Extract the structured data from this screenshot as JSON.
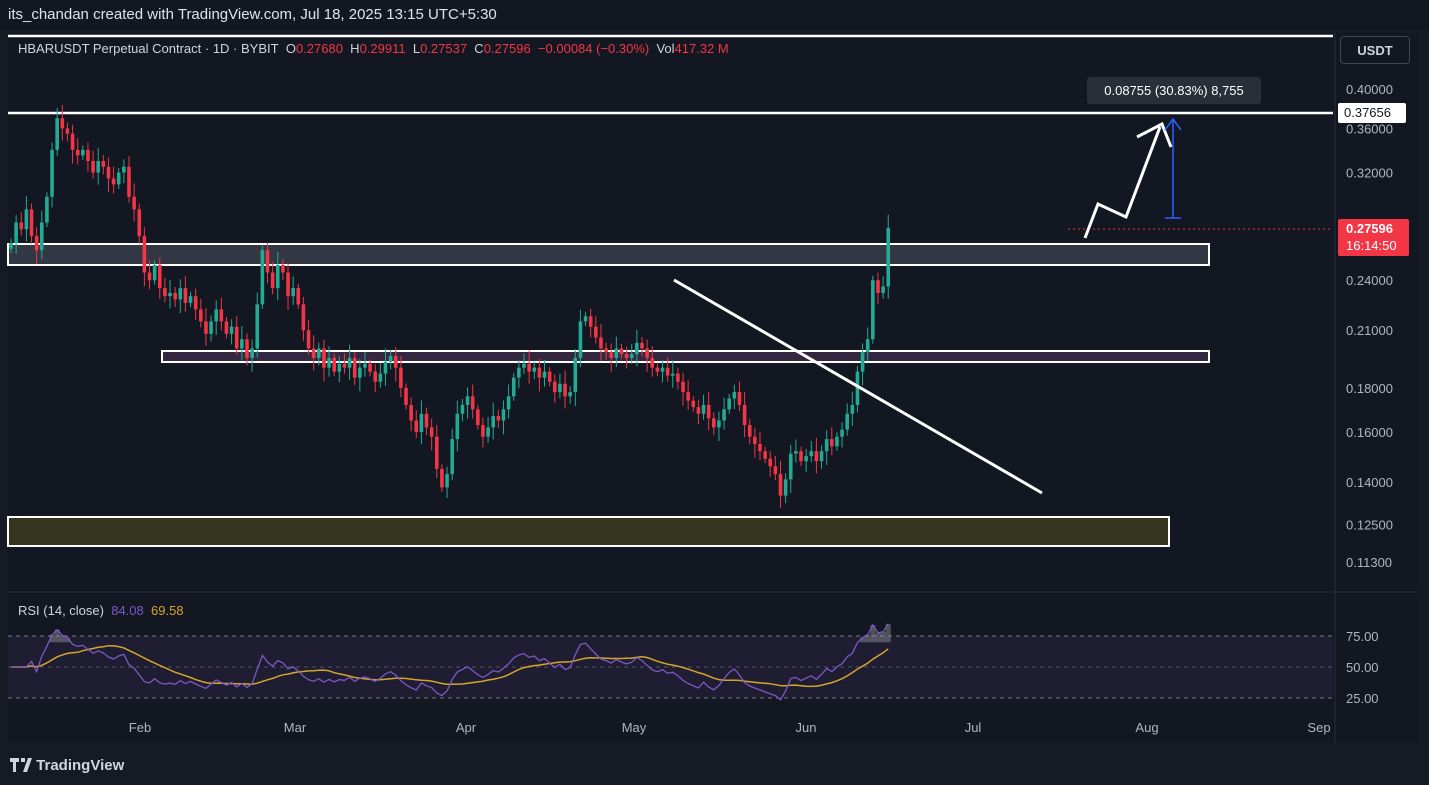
{
  "header": {
    "caption": "its_chandan created with TradingView.com, Jul 18, 2025 13:15 UTC+5:30"
  },
  "legend": {
    "symbol": "HBARUSDT Perpetual Contract · 1D · BYBIT",
    "o_label": "O",
    "o_value": "0.27680",
    "h_label": "H",
    "h_value": "0.29911",
    "l_label": "L",
    "l_value": "0.27537",
    "c_label": "C",
    "c_value": "0.27596",
    "change": "−0.00084 (−0.30%)",
    "vol_label": "Vol",
    "vol_value": "417.32 M"
  },
  "currency_button": "USDT",
  "measure_label": "0.08755 (30.83%) 8,755",
  "price_tag": {
    "price": "0.27596",
    "countdown": "16:14:50"
  },
  "resistance_tag": "0.37656",
  "rsi": {
    "label": "RSI (14, close)",
    "value": "84.08",
    "ma_value": "69.58",
    "ticks": [
      "75.00",
      "50.00",
      "25.00"
    ]
  },
  "footer": {
    "brand": "TradingView"
  },
  "colors": {
    "up": "#22ab94",
    "down": "#f23645",
    "rsi_line": "#7e57c2",
    "rsi_ma": "#d4a72c",
    "accent": "#2962ff"
  },
  "chart_data": {
    "type": "candlestick",
    "scale": "log",
    "price_ticks": [
      0.4,
      0.36,
      0.32,
      0.24,
      0.21,
      0.18,
      0.16,
      0.14,
      0.125,
      0.113
    ],
    "price_tick_labels": [
      "0.40000",
      "0.36000",
      "0.32000",
      "0.24000",
      "0.21000",
      "0.18000",
      "0.16000",
      "0.14000",
      "0.12500",
      "0.11300"
    ],
    "months": [
      "Feb",
      "Mar",
      "Apr",
      "May",
      "Jun",
      "Jul",
      "Aug",
      "Sep"
    ],
    "closes": [
      0.265,
      0.28,
      0.275,
      0.29,
      0.27,
      0.26,
      0.28,
      0.3,
      0.34,
      0.37,
      0.36,
      0.355,
      0.34,
      0.335,
      0.34,
      0.33,
      0.32,
      0.33,
      0.325,
      0.315,
      0.31,
      0.32,
      0.325,
      0.3,
      0.29,
      0.27,
      0.245,
      0.24,
      0.25,
      0.235,
      0.23,
      0.232,
      0.228,
      0.235,
      0.226,
      0.23,
      0.222,
      0.215,
      0.208,
      0.215,
      0.222,
      0.215,
      0.208,
      0.212,
      0.2,
      0.205,
      0.195,
      0.2,
      0.225,
      0.26,
      0.245,
      0.235,
      0.25,
      0.245,
      0.23,
      0.235,
      0.225,
      0.21,
      0.2,
      0.195,
      0.2,
      0.19,
      0.195,
      0.188,
      0.192,
      0.19,
      0.195,
      0.185,
      0.19,
      0.192,
      0.188,
      0.183,
      0.187,
      0.193,
      0.196,
      0.19,
      0.18,
      0.172,
      0.165,
      0.16,
      0.168,
      0.162,
      0.158,
      0.145,
      0.138,
      0.143,
      0.157,
      0.168,
      0.172,
      0.176,
      0.17,
      0.163,
      0.158,
      0.162,
      0.167,
      0.165,
      0.17,
      0.176,
      0.185,
      0.19,
      0.192,
      0.188,
      0.19,
      0.185,
      0.188,
      0.183,
      0.178,
      0.182,
      0.176,
      0.178,
      0.195,
      0.215,
      0.218,
      0.212,
      0.206,
      0.2,
      0.198,
      0.195,
      0.2,
      0.197,
      0.195,
      0.197,
      0.203,
      0.2,
      0.195,
      0.19,
      0.188,
      0.19,
      0.186,
      0.187,
      0.183,
      0.178,
      0.174,
      0.171,
      0.168,
      0.172,
      0.166,
      0.162,
      0.165,
      0.17,
      0.175,
      0.178,
      0.172,
      0.163,
      0.158,
      0.155,
      0.152,
      0.149,
      0.146,
      0.143,
      0.135,
      0.141,
      0.151,
      0.152,
      0.148,
      0.15,
      0.152,
      0.148,
      0.152,
      0.157,
      0.154,
      0.158,
      0.161,
      0.168,
      0.172,
      0.188,
      0.198,
      0.205,
      0.24,
      0.232,
      0.236,
      0.276
    ]
  }
}
